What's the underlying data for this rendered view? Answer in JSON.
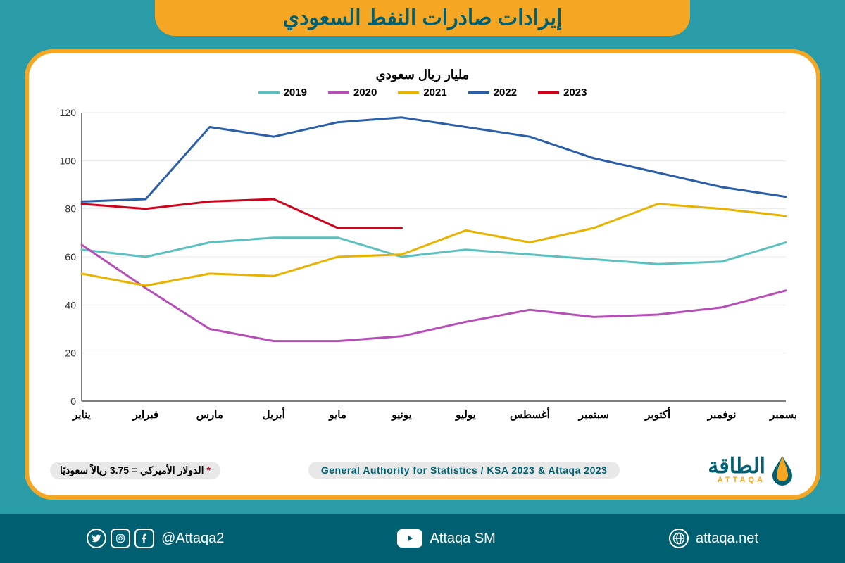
{
  "title": "إيرادات صادرات النفط السعودي",
  "chart": {
    "type": "line",
    "subtitle": "مليار ريال سعودي",
    "categories": [
      "يناير",
      "فبراير",
      "مارس",
      "أبريل",
      "مايو",
      "يونيو",
      "يوليو",
      "أغسطس",
      "سبتمبر",
      "أكتوبر",
      "نوفمبر",
      "ديسمبر"
    ],
    "ylim": [
      0,
      120
    ],
    "ytick_step": 20,
    "background_color": "#ffffff",
    "grid_color": "#e8e8e8",
    "axis_color": "#555555",
    "line_width": 3,
    "label_fontsize": 15,
    "series": [
      {
        "name": "2019",
        "color": "#5bc0be",
        "width": 3,
        "values": [
          63,
          60,
          66,
          68,
          68,
          60,
          63,
          61,
          59,
          57,
          58,
          66
        ]
      },
      {
        "name": "2020",
        "color": "#b74db7",
        "width": 3,
        "values": [
          65,
          47,
          30,
          25,
          25,
          27,
          33,
          38,
          35,
          36,
          39,
          46
        ]
      },
      {
        "name": "2021",
        "color": "#e8b200",
        "width": 3,
        "values": [
          53,
          48,
          53,
          52,
          60,
          61,
          71,
          66,
          72,
          82,
          80,
          77
        ]
      },
      {
        "name": "2022",
        "color": "#2a5ea8",
        "width": 3,
        "values": [
          83,
          84,
          114,
          110,
          116,
          118,
          114,
          110,
          101,
          95,
          89,
          85
        ]
      },
      {
        "name": "2023",
        "color": "#d0021b",
        "width": 4,
        "values": [
          82,
          80,
          83,
          84,
          72,
          72
        ]
      }
    ]
  },
  "note_prefix": "*",
  "note": " الدولار الأميركي = 3.75 ريالاً سعوديًا",
  "source": "General Authority for Statistics / KSA 2023 & Attaqa 2023",
  "logo": {
    "main": "الطاقة",
    "sub": "ATTAQA"
  },
  "social": {
    "handle1": "@Attaqa2",
    "handle2": "Attaqa SM",
    "website": "attaqa.net"
  },
  "colors": {
    "page_bg": "#2a9ca8",
    "banner_bg": "#f5a623",
    "banner_text": "#006072",
    "card_border": "#f5a623",
    "strip_bg": "#006072"
  }
}
